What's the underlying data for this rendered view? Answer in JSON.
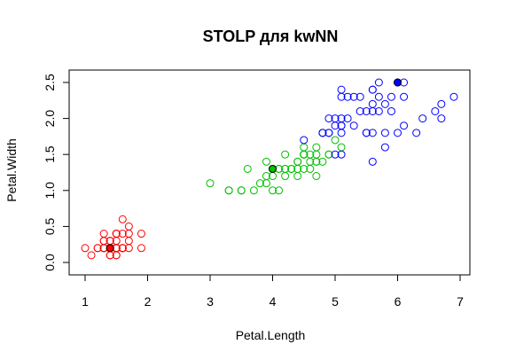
{
  "chart_data": {
    "type": "scatter",
    "title": "STOLP для kwNN",
    "xlabel": "Petal.Length",
    "ylabel": "Petal.Width",
    "xlim": [
      1,
      7
    ],
    "ylim": [
      -0.25,
      2.75
    ],
    "xticks": [
      "1",
      "2",
      "3",
      "4",
      "5",
      "6",
      "7"
    ],
    "yticks": [
      "0.0",
      "0.5",
      "1.0",
      "1.5",
      "2.0",
      "2.5"
    ],
    "grid": false,
    "colors": {
      "setosa": "#ff0000",
      "versicolor": "#00c000",
      "virginica": "#0000ff"
    },
    "series": [
      {
        "class": "setosa",
        "points": [
          [
            1.4,
            0.2
          ],
          [
            1.4,
            0.2
          ],
          [
            1.3,
            0.2
          ],
          [
            1.5,
            0.2
          ],
          [
            1.4,
            0.2
          ],
          [
            1.7,
            0.4
          ],
          [
            1.4,
            0.3
          ],
          [
            1.5,
            0.2
          ],
          [
            1.4,
            0.2
          ],
          [
            1.5,
            0.1
          ],
          [
            1.5,
            0.2
          ],
          [
            1.6,
            0.2
          ],
          [
            1.4,
            0.1
          ],
          [
            1.1,
            0.1
          ],
          [
            1.2,
            0.2
          ],
          [
            1.5,
            0.4
          ],
          [
            1.3,
            0.4
          ],
          [
            1.4,
            0.3
          ],
          [
            1.7,
            0.3
          ],
          [
            1.5,
            0.3
          ],
          [
            1.7,
            0.2
          ],
          [
            1.5,
            0.4
          ],
          [
            1.0,
            0.2
          ],
          [
            1.7,
            0.5
          ],
          [
            1.9,
            0.2
          ],
          [
            1.6,
            0.2
          ],
          [
            1.6,
            0.4
          ],
          [
            1.5,
            0.2
          ],
          [
            1.4,
            0.2
          ],
          [
            1.6,
            0.2
          ],
          [
            1.6,
            0.2
          ],
          [
            1.5,
            0.4
          ],
          [
            1.5,
            0.1
          ],
          [
            1.4,
            0.2
          ],
          [
            1.5,
            0.2
          ],
          [
            1.2,
            0.2
          ],
          [
            1.3,
            0.2
          ],
          [
            1.4,
            0.1
          ],
          [
            1.3,
            0.2
          ],
          [
            1.5,
            0.2
          ],
          [
            1.3,
            0.3
          ],
          [
            1.3,
            0.3
          ],
          [
            1.3,
            0.2
          ],
          [
            1.6,
            0.6
          ],
          [
            1.9,
            0.4
          ],
          [
            1.4,
            0.3
          ],
          [
            1.6,
            0.2
          ],
          [
            1.4,
            0.2
          ],
          [
            1.5,
            0.2
          ],
          [
            1.4,
            0.2
          ]
        ]
      },
      {
        "class": "versicolor",
        "points": [
          [
            4.7,
            1.4
          ],
          [
            4.5,
            1.5
          ],
          [
            4.9,
            1.5
          ],
          [
            4.0,
            1.3
          ],
          [
            4.6,
            1.5
          ],
          [
            4.5,
            1.3
          ],
          [
            4.7,
            1.6
          ],
          [
            3.3,
            1.0
          ],
          [
            4.6,
            1.3
          ],
          [
            3.9,
            1.4
          ],
          [
            3.5,
            1.0
          ],
          [
            4.2,
            1.5
          ],
          [
            4.0,
            1.0
          ],
          [
            4.7,
            1.4
          ],
          [
            3.6,
            1.3
          ],
          [
            4.4,
            1.4
          ],
          [
            4.5,
            1.5
          ],
          [
            4.1,
            1.0
          ],
          [
            4.5,
            1.5
          ],
          [
            3.9,
            1.1
          ],
          [
            4.8,
            1.8
          ],
          [
            4.0,
            1.3
          ],
          [
            4.9,
            1.5
          ],
          [
            4.7,
            1.2
          ],
          [
            4.3,
            1.3
          ],
          [
            4.4,
            1.4
          ],
          [
            4.8,
            1.4
          ],
          [
            5.0,
            1.7
          ],
          [
            4.5,
            1.5
          ],
          [
            3.5,
            1.0
          ],
          [
            3.8,
            1.1
          ],
          [
            3.7,
            1.0
          ],
          [
            3.9,
            1.2
          ],
          [
            5.1,
            1.6
          ],
          [
            4.5,
            1.5
          ],
          [
            4.5,
            1.6
          ],
          [
            4.7,
            1.5
          ],
          [
            4.4,
            1.3
          ],
          [
            4.1,
            1.3
          ],
          [
            4.0,
            1.3
          ],
          [
            4.4,
            1.2
          ],
          [
            4.6,
            1.4
          ],
          [
            4.0,
            1.2
          ],
          [
            3.3,
            1.0
          ],
          [
            4.2,
            1.3
          ],
          [
            4.2,
            1.2
          ],
          [
            4.2,
            1.3
          ],
          [
            4.3,
            1.3
          ],
          [
            3.0,
            1.1
          ],
          [
            4.1,
            1.3
          ]
        ]
      },
      {
        "class": "virginica",
        "points": [
          [
            6.0,
            2.5
          ],
          [
            5.1,
            1.9
          ],
          [
            5.9,
            2.1
          ],
          [
            5.6,
            1.8
          ],
          [
            5.8,
            2.2
          ],
          [
            6.6,
            2.1
          ],
          [
            4.5,
            1.7
          ],
          [
            6.3,
            1.8
          ],
          [
            5.8,
            1.8
          ],
          [
            6.1,
            2.5
          ],
          [
            5.1,
            2.0
          ],
          [
            5.3,
            1.9
          ],
          [
            5.5,
            2.1
          ],
          [
            5.0,
            2.0
          ],
          [
            5.1,
            2.4
          ],
          [
            5.3,
            2.3
          ],
          [
            5.5,
            1.8
          ],
          [
            6.7,
            2.2
          ],
          [
            6.9,
            2.3
          ],
          [
            5.0,
            1.5
          ],
          [
            5.7,
            2.3
          ],
          [
            4.9,
            2.0
          ],
          [
            6.7,
            2.0
          ],
          [
            4.9,
            1.8
          ],
          [
            5.7,
            2.1
          ],
          [
            6.0,
            1.8
          ],
          [
            4.8,
            1.8
          ],
          [
            4.9,
            1.8
          ],
          [
            5.6,
            2.1
          ],
          [
            5.8,
            1.6
          ],
          [
            6.1,
            1.9
          ],
          [
            6.4,
            2.0
          ],
          [
            5.6,
            2.2
          ],
          [
            5.1,
            1.5
          ],
          [
            5.6,
            1.4
          ],
          [
            6.1,
            2.3
          ],
          [
            5.6,
            2.4
          ],
          [
            5.5,
            1.8
          ],
          [
            4.8,
            1.8
          ],
          [
            5.4,
            2.1
          ],
          [
            5.6,
            2.4
          ],
          [
            5.1,
            2.3
          ],
          [
            5.1,
            1.9
          ],
          [
            5.9,
            2.3
          ],
          [
            5.7,
            2.5
          ],
          [
            5.2,
            2.3
          ],
          [
            5.0,
            1.9
          ],
          [
            5.2,
            2.0
          ],
          [
            5.4,
            2.3
          ],
          [
            5.1,
            1.8
          ]
        ]
      }
    ],
    "prototypes": [
      {
        "class": "setosa",
        "x": 1.4,
        "y": 0.2
      },
      {
        "class": "versicolor",
        "x": 4.0,
        "y": 1.3
      },
      {
        "class": "virginica",
        "x": 6.0,
        "y": 2.5
      }
    ]
  }
}
